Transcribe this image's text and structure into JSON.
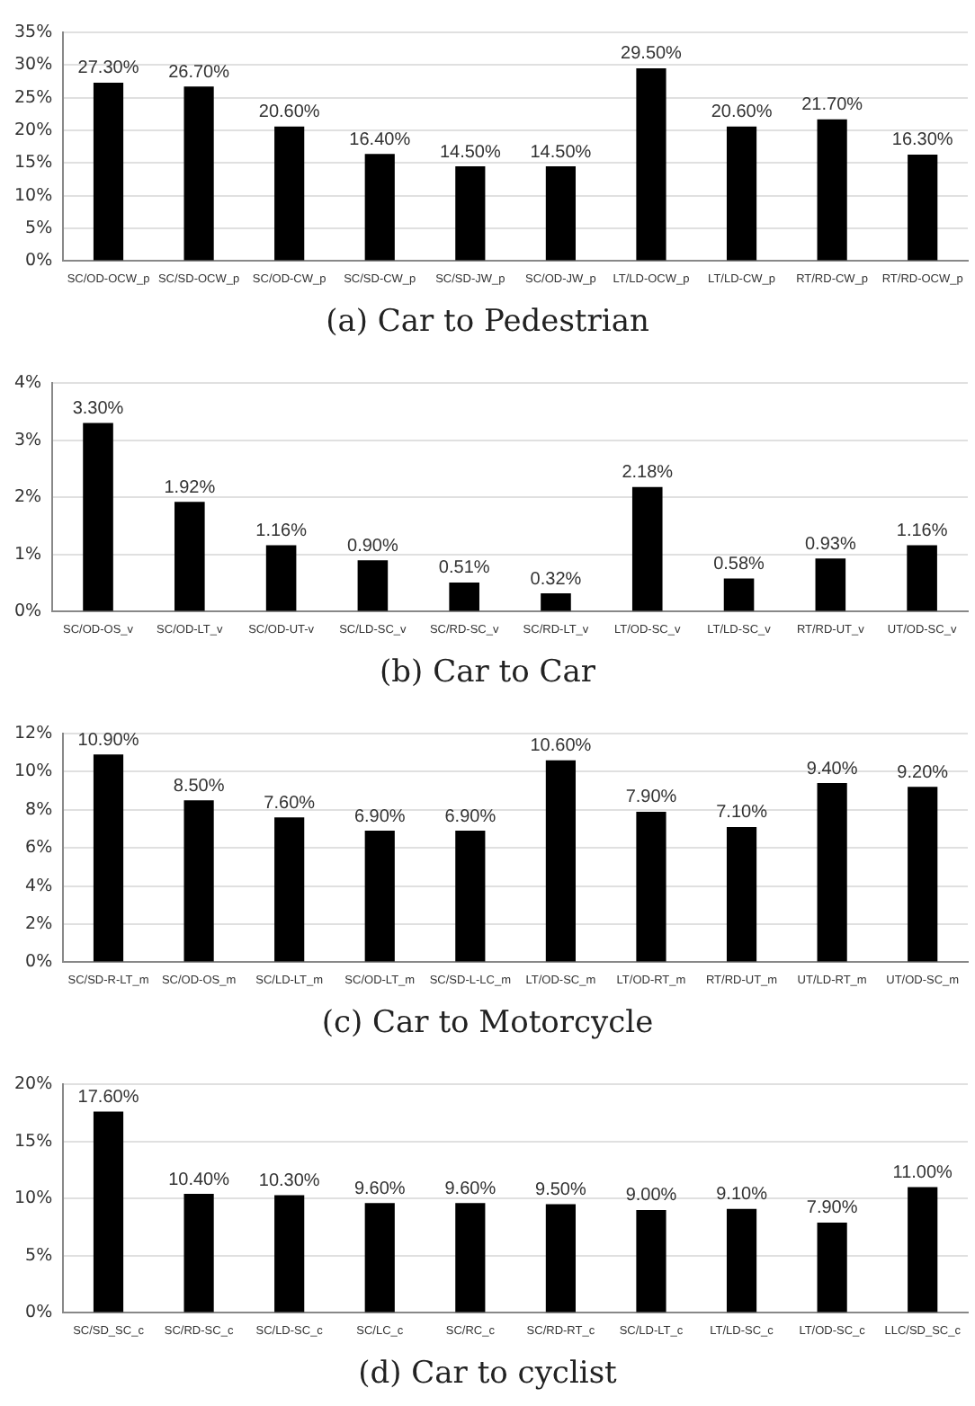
{
  "chart_data": [
    {
      "type": "bar",
      "title": "(a) Car to Pedestrian",
      "categories": [
        "SC/OD-OCW_p",
        "SC/SD-OCW_p",
        "SC/OD-CW_p",
        "SC/SD-CW_p",
        "SC/SD-JW_p",
        "SC/OD-JW_p",
        "LT/LD-OCW_p",
        "LT/LD-CW_p",
        "RT/RD-CW_p",
        "RT/RD-OCW_p"
      ],
      "values": [
        27.3,
        26.7,
        20.6,
        16.4,
        14.5,
        14.5,
        29.5,
        20.6,
        21.7,
        16.3
      ],
      "value_labels": [
        "27.30%",
        "26.70%",
        "20.60%",
        "16.40%",
        "14.50%",
        "14.50%",
        "29.50%",
        "20.60%",
        "21.70%",
        "16.30%"
      ],
      "color": "#000000",
      "ylim": [
        0,
        35
      ],
      "yticks": [
        {
          "value": 0,
          "label": "0%"
        },
        {
          "value": 5,
          "label": "5%"
        },
        {
          "value": 10,
          "label": "10%"
        },
        {
          "value": 15,
          "label": "15%"
        },
        {
          "value": 20,
          "label": "20%"
        },
        {
          "value": 25,
          "label": "25%"
        },
        {
          "value": 30,
          "label": "30%"
        },
        {
          "value": 35,
          "label": "35%"
        }
      ],
      "grid": "y",
      "legend": false
    },
    {
      "type": "bar",
      "title": "(b) Car to Car",
      "categories": [
        "SC/OD-OS_v",
        "SC/OD-LT_v",
        "SC/OD-UT-v",
        "SC/LD-SC_v",
        "SC/RD-SC_v",
        "SC/RD-LT_v",
        "LT/OD-SC_v",
        "LT/LD-SC_v",
        "RT/RD-UT_v",
        "UT/OD-SC_v"
      ],
      "values": [
        3.3,
        1.92,
        1.16,
        0.9,
        0.51,
        0.32,
        2.18,
        0.58,
        0.93,
        1.16
      ],
      "value_labels": [
        "3.30%",
        "1.92%",
        "1.16%",
        "0.90%",
        "0.51%",
        "0.32%",
        "2.18%",
        "0.58%",
        "0.93%",
        "1.16%"
      ],
      "color": "#000000",
      "ylim": [
        0,
        4
      ],
      "yticks": [
        {
          "value": 0,
          "label": "0%"
        },
        {
          "value": 1,
          "label": "1%"
        },
        {
          "value": 2,
          "label": "2%"
        },
        {
          "value": 3,
          "label": "3%"
        },
        {
          "value": 4,
          "label": "4%"
        }
      ],
      "grid": "y",
      "legend": false
    },
    {
      "type": "bar",
      "title": "(c) Car to Motorcycle",
      "categories": [
        "SC/SD-R-LT_m",
        "SC/OD-OS_m",
        "SC/LD-LT_m",
        "SC/OD-LT_m",
        "SC/SD-L-LC_m",
        "LT/OD-SC_m",
        "LT/OD-RT_m",
        "RT/RD-UT_m",
        "UT/LD-RT_m",
        "UT/OD-SC_m"
      ],
      "values": [
        10.9,
        8.5,
        7.6,
        6.9,
        6.9,
        10.6,
        7.9,
        7.1,
        9.4,
        9.2
      ],
      "value_labels": [
        "10.90%",
        "8.50%",
        "7.60%",
        "6.90%",
        "6.90%",
        "10.60%",
        "7.90%",
        "7.10%",
        "9.40%",
        "9.20%"
      ],
      "color": "#000000",
      "ylim": [
        0,
        12
      ],
      "yticks": [
        {
          "value": 0,
          "label": "0%"
        },
        {
          "value": 2,
          "label": "2%"
        },
        {
          "value": 4,
          "label": "4%"
        },
        {
          "value": 6,
          "label": "6%"
        },
        {
          "value": 8,
          "label": "8%"
        },
        {
          "value": 10,
          "label": "10%"
        },
        {
          "value": 12,
          "label": "12%"
        }
      ],
      "grid": "y",
      "legend": false
    },
    {
      "type": "bar",
      "title": "(d) Car to cyclist",
      "categories": [
        "SC/SD_SC_c",
        "SC/RD-SC_c",
        "SC/LD-SC_c",
        "SC/LC_c",
        "SC/RC_c",
        "SC/RD-RT_c",
        "SC/LD-LT_c",
        "LT/LD-SC_c",
        "LT/OD-SC_c",
        "LLC/SD_SC_c"
      ],
      "values": [
        17.6,
        10.4,
        10.3,
        9.6,
        9.6,
        9.5,
        9.0,
        9.1,
        7.9,
        11.0
      ],
      "value_labels": [
        "17.60%",
        "10.40%",
        "10.30%",
        "9.60%",
        "9.60%",
        "9.50%",
        "9.00%",
        "9.10%",
        "7.90%",
        "11.00%"
      ],
      "color": "#000000",
      "ylim": [
        0,
        20
      ],
      "yticks": [
        {
          "value": 0,
          "label": "0%"
        },
        {
          "value": 5,
          "label": "5%"
        },
        {
          "value": 10,
          "label": "10%"
        },
        {
          "value": 15,
          "label": "15%"
        },
        {
          "value": 20,
          "label": "20%"
        }
      ],
      "grid": "y",
      "legend": false
    }
  ]
}
